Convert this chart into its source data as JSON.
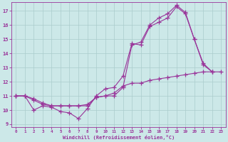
{
  "xlabel": "Windchill (Refroidissement éolien,°C)",
  "xlim": [
    -0.5,
    23.5
  ],
  "ylim": [
    8.8,
    17.6
  ],
  "yticks": [
    9,
    10,
    11,
    12,
    13,
    14,
    15,
    16,
    17
  ],
  "xticks": [
    0,
    1,
    2,
    3,
    4,
    5,
    6,
    7,
    8,
    9,
    10,
    11,
    12,
    13,
    14,
    15,
    16,
    17,
    18,
    19,
    20,
    21,
    22,
    23
  ],
  "bg_color": "#cce8e8",
  "line_color": "#993399",
  "grid_color": "#aacccc",
  "line1_x": [
    0,
    1,
    2,
    3,
    4,
    5,
    6,
    7,
    8,
    9,
    10,
    11,
    12,
    13,
    14,
    15,
    16,
    17,
    18,
    19,
    20,
    21,
    22
  ],
  "line1_y": [
    11.0,
    11.0,
    10.0,
    10.3,
    10.2,
    9.9,
    9.8,
    9.4,
    10.1,
    11.0,
    11.5,
    11.6,
    12.4,
    14.7,
    14.6,
    15.9,
    16.2,
    16.5,
    17.3,
    16.8,
    15.0,
    13.3,
    12.7
  ],
  "line2_x": [
    0,
    1,
    2,
    3,
    4,
    5,
    6,
    7,
    8,
    9,
    10,
    11,
    12,
    13,
    14,
    15,
    16,
    17,
    18,
    19,
    20,
    21,
    22
  ],
  "line2_y": [
    11.0,
    11.0,
    10.7,
    10.4,
    10.3,
    10.3,
    10.3,
    10.3,
    10.4,
    10.9,
    11.0,
    11.0,
    11.6,
    14.6,
    14.8,
    16.0,
    16.5,
    16.8,
    17.4,
    16.9,
    15.0,
    13.2,
    12.7
  ],
  "line3_x": [
    0,
    1,
    2,
    3,
    4,
    5,
    6,
    7,
    8,
    9,
    10,
    11,
    12,
    13,
    14,
    15,
    16,
    17,
    18,
    19,
    20,
    21,
    22,
    23
  ],
  "line3_y": [
    11.0,
    11.0,
    10.8,
    10.5,
    10.3,
    10.3,
    10.3,
    10.3,
    10.3,
    10.9,
    11.0,
    11.2,
    11.7,
    11.9,
    11.9,
    12.1,
    12.2,
    12.3,
    12.4,
    12.5,
    12.6,
    12.7,
    12.7,
    12.7
  ]
}
